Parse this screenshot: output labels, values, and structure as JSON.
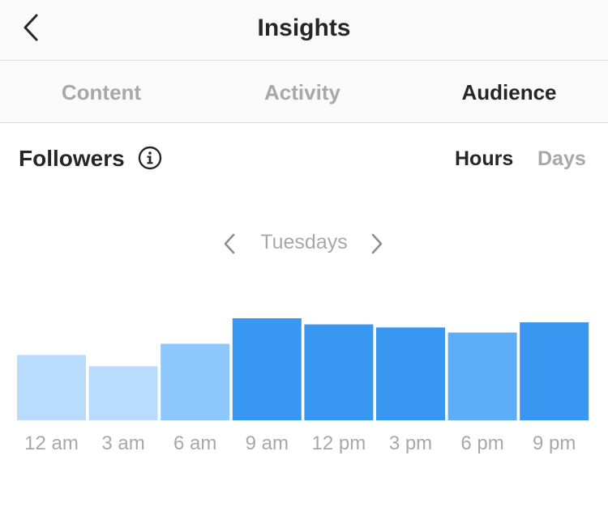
{
  "header": {
    "title": "Insights",
    "back_icon": "chevron-left-icon"
  },
  "tabs": [
    {
      "label": "Content",
      "active": false
    },
    {
      "label": "Activity",
      "active": false
    },
    {
      "label": "Audience",
      "active": true
    }
  ],
  "section": {
    "title": "Followers",
    "info_icon": "info-icon",
    "toggle": {
      "hours_label": "Hours",
      "days_label": "Days",
      "selected": "Hours"
    }
  },
  "day_selector": {
    "label": "Tuesdays"
  },
  "chart_data": {
    "type": "bar",
    "categories": [
      "12 am",
      "3 am",
      "6 am",
      "9 am",
      "12 pm",
      "3 pm",
      "6 pm",
      "9 pm"
    ],
    "values": [
      64,
      53,
      75,
      100,
      94,
      91,
      86,
      96
    ],
    "colors": [
      "#b9dcfd",
      "#b9dcfd",
      "#8ec7fc",
      "#3897f0",
      "#3897f0",
      "#3897f0",
      "#5eadf8",
      "#3897f0"
    ],
    "title": "",
    "xlabel": "",
    "ylabel": "",
    "ylim": [
      0,
      100
    ],
    "grid": false
  }
}
